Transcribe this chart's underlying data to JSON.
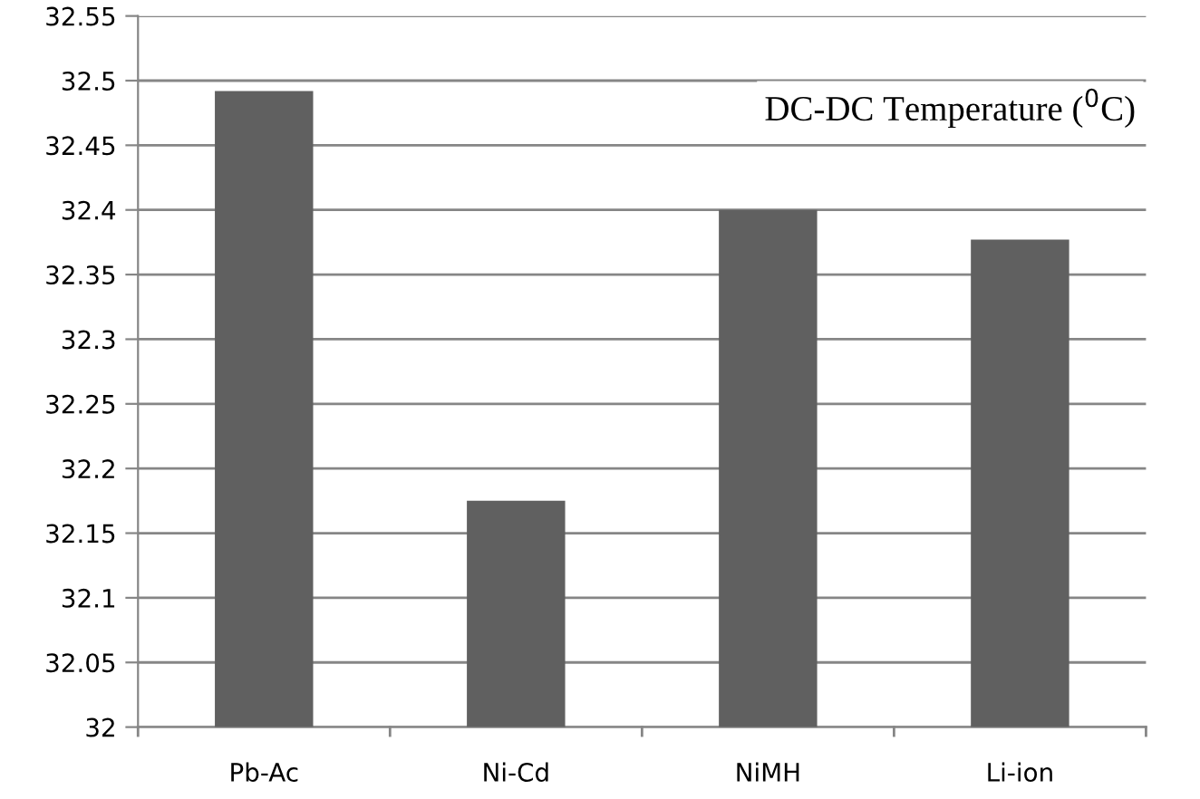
{
  "chart_data": {
    "type": "bar",
    "title": "DC-DC Temperature ($^{0}$C)",
    "categories": [
      "Pb-Ac",
      "Ni-Cd",
      "NiMH",
      "Li-ion"
    ],
    "values": [
      32.492,
      32.175,
      32.4,
      32.377
    ],
    "color": "#606060",
    "ylim": [
      32,
      32.55
    ],
    "yticks": [
      32,
      32.05,
      32.1,
      32.15,
      32.2,
      32.25,
      32.3,
      32.35,
      32.4,
      32.45,
      32.5,
      32.55
    ],
    "grid": "y"
  }
}
